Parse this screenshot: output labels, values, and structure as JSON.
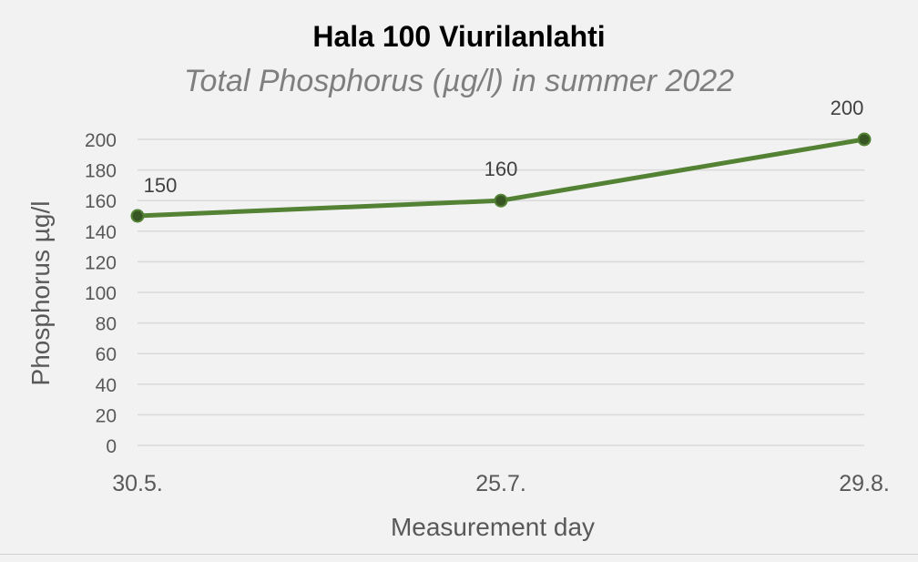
{
  "chart_data": {
    "type": "line",
    "title": "Hala 100 Viurilanlahti",
    "subtitle": "Total Phosphorus (µg/l) in summer 2022",
    "xlabel": "Measurement day",
    "ylabel": "Phosphorus µg/l",
    "categories": [
      "30.5.",
      "25.7.",
      "29.8."
    ],
    "series": [
      {
        "values": [
          150,
          160,
          200
        ],
        "color": "#548235",
        "marker_fill": "#375623"
      }
    ],
    "data_labels": [
      "150",
      "160",
      "200"
    ],
    "ylim": [
      0,
      200
    ],
    "ytick_step": 20,
    "yticks": [
      "0",
      "20",
      "40",
      "60",
      "80",
      "100",
      "120",
      "140",
      "160",
      "180",
      "200"
    ],
    "grid": true,
    "legend": "none",
    "colors": {
      "background": "#f2f2f2",
      "gridline": "#d9d9d9",
      "axis_text": "#595959"
    }
  }
}
